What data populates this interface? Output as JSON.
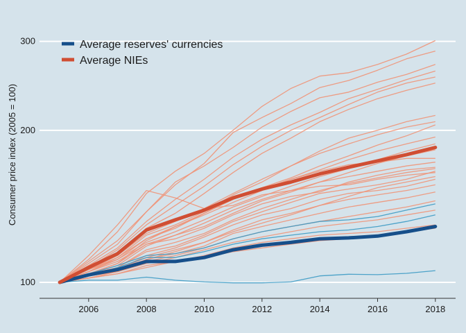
{
  "chart_data": {
    "type": "line",
    "title": "",
    "xlabel": "",
    "ylabel": "Consumer price index (2005 = 100)",
    "y_scale": "log",
    "xlim": [
      2004.3,
      2018.7
    ],
    "ylim": [
      93,
      340
    ],
    "x_ticks": [
      2006,
      2008,
      2010,
      2012,
      2014,
      2016,
      2018
    ],
    "y_ticks": [
      100,
      200,
      300
    ],
    "grid": "horizontal",
    "legend_position": "top-left",
    "colors": {
      "background": "#d5e3eb",
      "grid": "#ffffff",
      "reserves_avg": "#164f8a",
      "nies_avg": "#d04e33",
      "reserves_individual": "#3c9ac4",
      "nies_individual": "#ef9478"
    },
    "legend": [
      {
        "label": "Average reserves' currencies",
        "series": "reserves_avg"
      },
      {
        "label": "Average NIEs",
        "series": "nies_avg"
      }
    ],
    "x": [
      2005,
      2006,
      2007,
      2008,
      2009,
      2010,
      2011,
      2012,
      2013,
      2014,
      2015,
      2016,
      2017,
      2018
    ],
    "averages": [
      {
        "name": "Average reserves' currencies",
        "key": "reserves_avg",
        "values": [
          100,
          103.5,
          106,
          110,
          110,
          112,
          116,
          118.5,
          120,
          122,
          122.5,
          123.5,
          126,
          129
        ]
      },
      {
        "name": "Average NIEs",
        "key": "nies_avg",
        "values": [
          100,
          107,
          114,
          127,
          133,
          139,
          147,
          153,
          158,
          164,
          169,
          174,
          179,
          185
        ]
      }
    ],
    "reserves_individual": [
      [
        100,
        104,
        108,
        113,
        114,
        117,
        122,
        126,
        129,
        132,
        133,
        135,
        139,
        143
      ],
      [
        100,
        103,
        107,
        112,
        112,
        115,
        119,
        122,
        124,
        126,
        127,
        129,
        132,
        136
      ],
      [
        100,
        101,
        101,
        102.4,
        101,
        100.2,
        99.8,
        99.8,
        100.2,
        103,
        103.8,
        103.6,
        104.2,
        105.5
      ]
    ],
    "nies_individual": [
      [
        100,
        113,
        130,
        152,
        147,
        140,
        142,
        149,
        152,
        155,
        156,
        160,
        163,
        165
      ],
      [
        100,
        111,
        126,
        150,
        166,
        180,
        200,
        223,
        242,
        256,
        260,
        270,
        283,
        301
      ],
      [
        100,
        110,
        121,
        138,
        156,
        172,
        198,
        212,
        226,
        243,
        251,
        263,
        277,
        287
      ],
      [
        100,
        109,
        119,
        138,
        158,
        170,
        185,
        203,
        218,
        232,
        238,
        249,
        258,
        270
      ],
      [
        100,
        108,
        117,
        132,
        146,
        160,
        177,
        192,
        205,
        217,
        231,
        241,
        252,
        262
      ],
      [
        100,
        107,
        116,
        130,
        142,
        155,
        171,
        186,
        200,
        212,
        225,
        238,
        248,
        255
      ],
      [
        100,
        108,
        114,
        128,
        137,
        150,
        165,
        180,
        193,
        208,
        220,
        231,
        240,
        248
      ],
      [
        100,
        106,
        112,
        124,
        130,
        138,
        149,
        158,
        170,
        182,
        193,
        200,
        208,
        214
      ],
      [
        100,
        106,
        113,
        125,
        132,
        140,
        150,
        160,
        170,
        180,
        188,
        196,
        203,
        208
      ],
      [
        100,
        105,
        112,
        122,
        128,
        137,
        146,
        154,
        161,
        170,
        178,
        187,
        195,
        205
      ],
      [
        100,
        106,
        111,
        120,
        126,
        133,
        141,
        148,
        155,
        162,
        168,
        175,
        182,
        188
      ],
      [
        100,
        105,
        111,
        122,
        129,
        137,
        148,
        153,
        160,
        166,
        171,
        173,
        176,
        176
      ],
      [
        100,
        104,
        109,
        119,
        124,
        131,
        139,
        146,
        152,
        158,
        162,
        166,
        170,
        173
      ],
      [
        100,
        105,
        110,
        119,
        122,
        128,
        136,
        143,
        148,
        151,
        158,
        163,
        167,
        169
      ],
      [
        100,
        104,
        107,
        115,
        118,
        124,
        132,
        138,
        144,
        150,
        153,
        156,
        160,
        166
      ],
      [
        100,
        104,
        106,
        113,
        117,
        123,
        130,
        136,
        140,
        146,
        150,
        152,
        155,
        160
      ],
      [
        100,
        103,
        106,
        112,
        116,
        120,
        127,
        133,
        137,
        142,
        146,
        149,
        152,
        156
      ],
      [
        100,
        103,
        106,
        111,
        114,
        118,
        125,
        129,
        133,
        137,
        141,
        144,
        147,
        151
      ],
      [
        100,
        102,
        105,
        110,
        113,
        117,
        122,
        126,
        129,
        132,
        135,
        138,
        141,
        145
      ],
      [
        100,
        103,
        105,
        109,
        112,
        116,
        120,
        123,
        126,
        129,
        131,
        133,
        136,
        139
      ],
      [
        100,
        103,
        105,
        111,
        115,
        120,
        126,
        131,
        136,
        142,
        148,
        154,
        158,
        162
      ],
      [
        100,
        104,
        108,
        118,
        124,
        129,
        137,
        145,
        151,
        158,
        165,
        172,
        178,
        183
      ],
      [
        100,
        104,
        109,
        121,
        129,
        136,
        144,
        152,
        160,
        167,
        175,
        182,
        188,
        194
      ],
      [
        100,
        102,
        104,
        108,
        110,
        113,
        117,
        120,
        122,
        124,
        125,
        126,
        128,
        130
      ],
      [
        100,
        102,
        104,
        107,
        110,
        112,
        115,
        117,
        119,
        121,
        122,
        123,
        126,
        128
      ],
      [
        100,
        103,
        107,
        116,
        120,
        125,
        133,
        140,
        146,
        152,
        157,
        161,
        165,
        168
      ]
    ]
  }
}
